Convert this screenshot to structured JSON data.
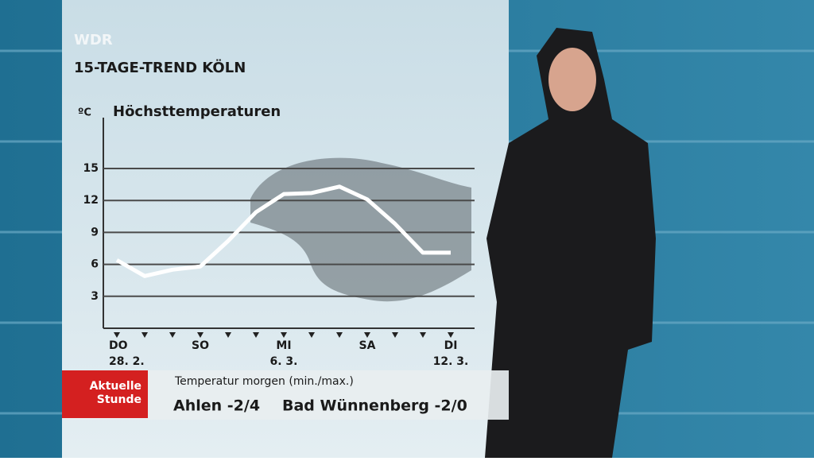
{
  "header": {
    "logo": "WDR",
    "title": "15-TAGE-TREND KÖLN"
  },
  "chart_data": {
    "type": "line",
    "title": "Höchsttemperaturen",
    "y_label": "ºC",
    "categories": [
      "DO",
      null,
      null,
      "SO",
      null,
      null,
      "MI",
      null,
      null,
      "SA",
      null,
      null,
      "DI"
    ],
    "category_dates": [
      "28. 2.",
      null,
      null,
      null,
      null,
      null,
      "6. 3.",
      null,
      null,
      null,
      null,
      null,
      "12. 3."
    ],
    "values": [
      6.4,
      4.9,
      5.5,
      5.8,
      8.2,
      10.9,
      12.6,
      12.7,
      13.3,
      12.1,
      9.8,
      7.1,
      7.1
    ],
    "color": "#ffffff",
    "ylim": [
      0,
      20
    ],
    "yticks": [
      3,
      6,
      9,
      12,
      15
    ],
    "grid": true
  },
  "ticker": {
    "badge": "Aktuelle Stunde",
    "heading": "Temperatur morgen (min./max.)",
    "items": [
      "Ahlen -2/4",
      "Bad Wünnenberg -2/0"
    ]
  }
}
